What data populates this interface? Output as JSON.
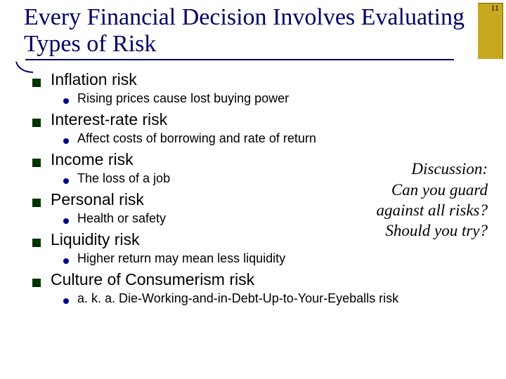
{
  "slide": {
    "number": "11",
    "title": "Every Financial Decision Involves Evaluating Types of Risk"
  },
  "risks": [
    {
      "label": "Inflation risk",
      "sub": "Rising prices cause lost buying power"
    },
    {
      "label": "Interest-rate risk",
      "sub": "Affect costs of borrowing and rate of return"
    },
    {
      "label": "Income risk",
      "sub": "The loss of a job"
    },
    {
      "label": "Personal risk",
      "sub": "Health or safety"
    },
    {
      "label": "Liquidity risk",
      "sub": "Higher return may mean less liquidity"
    },
    {
      "label": "Culture of Consumerism risk",
      "sub": "a. k. a. Die-Working-and-in-Debt-Up-to-Your-Eyeballs risk"
    }
  ],
  "discussion": {
    "heading": "Discussion:",
    "line1": "Can you guard",
    "line2": "against all risks?",
    "line3": "Should you try?"
  },
  "colors": {
    "title": "#000066",
    "square": "#003300",
    "dot": "#00008b",
    "band": "#c8a81e"
  }
}
